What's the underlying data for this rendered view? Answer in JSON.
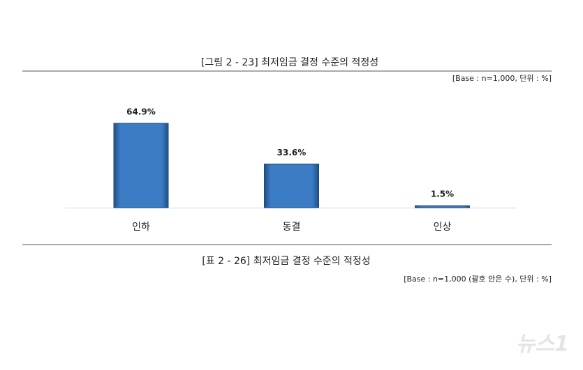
{
  "chart_data": {
    "type": "bar",
    "title": "[그림 2 - 23] 최저임금 결정 수준의 적정성",
    "note": "[Base : n=1,000, 단위 : %]",
    "categories": [
      "인하",
      "동결",
      "인상"
    ],
    "values": [
      64.9,
      33.6,
      1.5
    ],
    "value_labels": [
      "64.9%",
      "33.6%",
      "1.5%"
    ],
    "color": "#3b7cc5"
  },
  "table": {
    "title": "[표 2 - 26] 최저임금 결정 수준의 적정성",
    "note": "[Base : n=1,000 (괄호 안은 수), 단위 : %]"
  },
  "watermark": "뉴스1"
}
